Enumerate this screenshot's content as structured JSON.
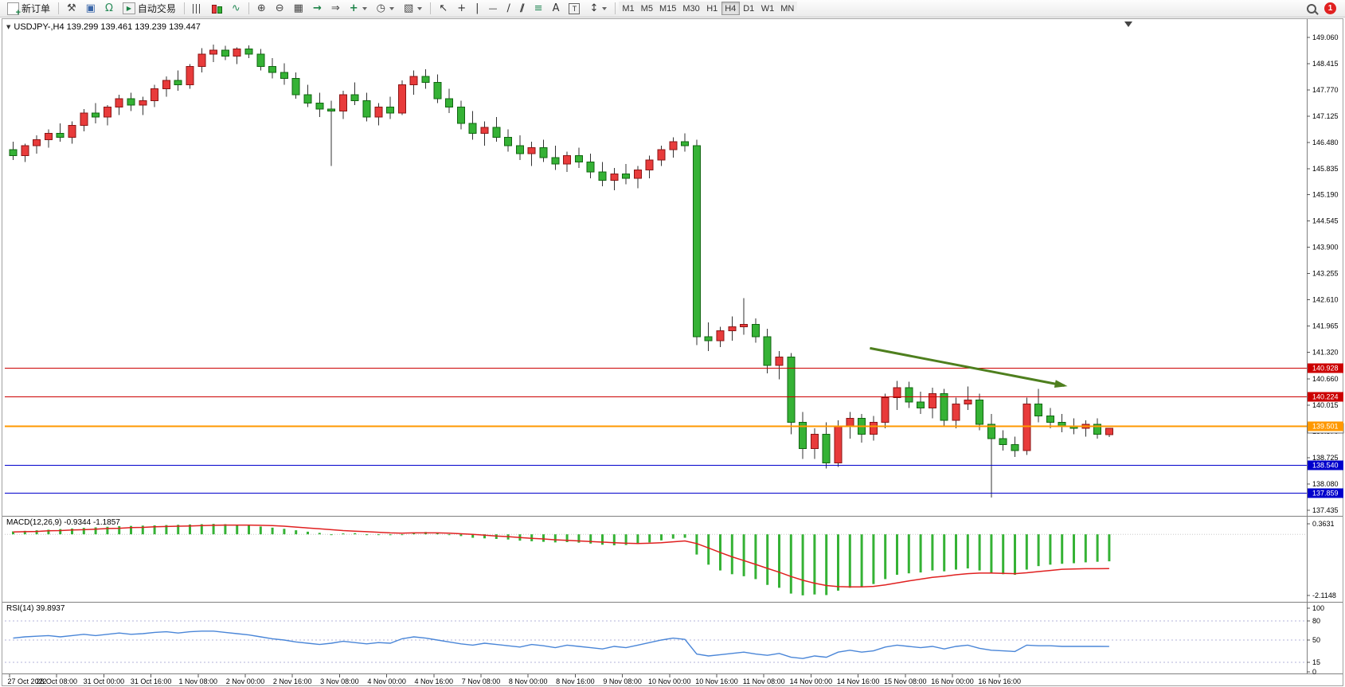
{
  "toolbar": {
    "new_order": "新订单",
    "autotrading": "自动交易",
    "timeframes": [
      "M1",
      "M5",
      "M15",
      "M30",
      "H1",
      "H4",
      "D1",
      "W1",
      "MN"
    ],
    "active_timeframe": "H4",
    "notification_count": "1",
    "icons": {
      "hammer": "⚒",
      "monitor": "▣",
      "headset": "Ω",
      "line_chart": "∿",
      "zoom_in": "⊕",
      "zoom_out": "⊖",
      "tile_windows": "▦",
      "auto_scroll": "→",
      "chart_shift": "⇒",
      "indicators": "+",
      "periods": "◷",
      "templates": "▧",
      "cursor": "↖",
      "crosshair": "+",
      "vertical_line": "|",
      "horizontal_line": "—",
      "trendline": "∕",
      "channel": "∕∕",
      "fibonacci": "≡",
      "text": "A",
      "text_label": "T",
      "arrows": "↕",
      "autotrading_play": "▶",
      "one_click_toggle": "▼"
    }
  },
  "chart": {
    "title": "USDJPY-,H4  139.299 139.461 139.239 139.447"
  },
  "indicators": {
    "macd_label": "MACD(12,26,9) -0.9344 -1.1857",
    "rsi_label": "RSI(14) 39.8937"
  },
  "chart_data": {
    "type": "candlestick",
    "symbol": "USDJPY-",
    "period": "H4",
    "ohlc_current": {
      "open": 139.299,
      "high": 139.461,
      "low": 139.239,
      "close": 139.447
    },
    "y_ticks": [
      "149.060",
      "148.415",
      "147.770",
      "147.125",
      "146.480",
      "145.835",
      "145.190",
      "144.545",
      "143.900",
      "143.255",
      "142.610",
      "141.965",
      "141.320",
      "140.660",
      "140.015",
      "139.370",
      "138.725",
      "138.080",
      "137.435"
    ],
    "x_labels": [
      "27 Oct 2022",
      "28 Oct 08:00",
      "31 Oct 00:00",
      "31 Oct 16:00",
      "1 Nov 08:00",
      "2 Nov 00:00",
      "2 Nov 16:00",
      "3 Nov 08:00",
      "4 Nov 00:00",
      "4 Nov 16:00",
      "7 Nov 08:00",
      "8 Nov 00:00",
      "8 Nov 16:00",
      "9 Nov 08:00",
      "10 Nov 00:00",
      "10 Nov 16:00",
      "11 Nov 08:00",
      "14 Nov 00:00",
      "14 Nov 16:00",
      "15 Nov 08:00",
      "16 Nov 00:00",
      "16 Nov 16:00"
    ],
    "candles": [
      [
        146.3,
        146.5,
        146.05,
        146.15
      ],
      [
        146.15,
        146.45,
        146.0,
        146.4
      ],
      [
        146.4,
        146.65,
        146.2,
        146.55
      ],
      [
        146.55,
        146.8,
        146.35,
        146.7
      ],
      [
        146.7,
        146.95,
        146.5,
        146.6
      ],
      [
        146.6,
        147.0,
        146.45,
        146.9
      ],
      [
        146.9,
        147.3,
        146.75,
        147.2
      ],
      [
        147.2,
        147.45,
        146.95,
        147.1
      ],
      [
        147.1,
        147.4,
        146.9,
        147.35
      ],
      [
        147.35,
        147.65,
        147.15,
        147.55
      ],
      [
        147.55,
        147.7,
        147.25,
        147.4
      ],
      [
        147.4,
        147.6,
        147.15,
        147.5
      ],
      [
        147.5,
        147.9,
        147.35,
        147.8
      ],
      [
        147.8,
        148.1,
        147.6,
        148.0
      ],
      [
        148.0,
        148.25,
        147.75,
        147.9
      ],
      [
        147.9,
        148.4,
        147.8,
        148.35
      ],
      [
        148.35,
        148.8,
        148.2,
        148.65
      ],
      [
        148.65,
        148.88,
        148.45,
        148.75
      ],
      [
        148.75,
        148.85,
        148.5,
        148.6
      ],
      [
        148.6,
        148.82,
        148.4,
        148.78
      ],
      [
        148.78,
        148.86,
        148.55,
        148.65
      ],
      [
        148.65,
        148.78,
        148.25,
        148.35
      ],
      [
        148.35,
        148.55,
        148.05,
        148.2
      ],
      [
        148.2,
        148.42,
        147.9,
        148.05
      ],
      [
        148.05,
        148.2,
        147.55,
        147.65
      ],
      [
        147.65,
        147.9,
        147.35,
        147.45
      ],
      [
        147.45,
        147.7,
        147.1,
        147.3
      ],
      [
        147.3,
        147.5,
        145.9,
        147.25
      ],
      [
        147.25,
        147.75,
        147.05,
        147.65
      ],
      [
        147.65,
        147.95,
        147.4,
        147.5
      ],
      [
        147.5,
        147.7,
        147.0,
        147.1
      ],
      [
        147.1,
        147.45,
        146.9,
        147.35
      ],
      [
        147.35,
        147.6,
        147.05,
        147.2
      ],
      [
        147.2,
        148.0,
        147.15,
        147.9
      ],
      [
        147.9,
        148.25,
        147.65,
        148.1
      ],
      [
        148.1,
        148.28,
        147.8,
        147.95
      ],
      [
        147.95,
        148.15,
        147.45,
        147.55
      ],
      [
        147.55,
        147.8,
        147.2,
        147.35
      ],
      [
        147.35,
        147.5,
        146.8,
        146.95
      ],
      [
        146.95,
        147.25,
        146.55,
        146.7
      ],
      [
        146.7,
        147.0,
        146.4,
        146.85
      ],
      [
        146.85,
        147.1,
        146.5,
        146.6
      ],
      [
        146.6,
        146.8,
        146.25,
        146.4
      ],
      [
        146.4,
        146.65,
        146.05,
        146.2
      ],
      [
        146.2,
        146.5,
        145.9,
        146.35
      ],
      [
        146.35,
        146.55,
        146.0,
        146.1
      ],
      [
        146.1,
        146.4,
        145.8,
        145.95
      ],
      [
        145.95,
        146.25,
        145.75,
        146.15
      ],
      [
        146.15,
        146.35,
        145.85,
        146.0
      ],
      [
        146.0,
        146.2,
        145.6,
        145.75
      ],
      [
        145.75,
        146.0,
        145.4,
        145.55
      ],
      [
        145.55,
        145.85,
        145.3,
        145.7
      ],
      [
        145.7,
        145.95,
        145.45,
        145.6
      ],
      [
        145.6,
        145.9,
        145.35,
        145.8
      ],
      [
        145.8,
        146.15,
        145.6,
        146.05
      ],
      [
        146.05,
        146.4,
        145.9,
        146.3
      ],
      [
        146.3,
        146.6,
        146.1,
        146.5
      ],
      [
        146.5,
        146.7,
        146.25,
        146.4
      ],
      [
        146.4,
        146.55,
        141.5,
        141.7
      ],
      [
        141.7,
        142.05,
        141.35,
        141.6
      ],
      [
        141.6,
        141.95,
        141.45,
        141.85
      ],
      [
        141.85,
        142.2,
        141.6,
        141.95
      ],
      [
        141.95,
        142.65,
        141.75,
        142.0
      ],
      [
        142.0,
        142.15,
        141.55,
        141.7
      ],
      [
        141.7,
        141.9,
        140.8,
        141.0
      ],
      [
        141.0,
        141.35,
        140.65,
        141.2
      ],
      [
        141.2,
        141.3,
        139.3,
        139.6
      ],
      [
        139.6,
        139.85,
        138.7,
        138.95
      ],
      [
        138.95,
        139.45,
        138.7,
        139.3
      ],
      [
        139.3,
        139.6,
        138.46,
        138.6
      ],
      [
        138.6,
        139.65,
        138.5,
        139.5
      ],
      [
        139.5,
        139.85,
        139.2,
        139.7
      ],
      [
        139.7,
        139.8,
        139.1,
        139.3
      ],
      [
        139.3,
        139.75,
        139.15,
        139.6
      ],
      [
        139.6,
        140.3,
        139.45,
        140.2
      ],
      [
        140.2,
        140.62,
        139.9,
        140.45
      ],
      [
        140.45,
        140.6,
        139.95,
        140.1
      ],
      [
        140.1,
        140.35,
        139.8,
        139.95
      ],
      [
        139.95,
        140.45,
        139.7,
        140.3
      ],
      [
        140.3,
        140.42,
        139.5,
        139.65
      ],
      [
        139.65,
        140.2,
        139.45,
        140.05
      ],
      [
        140.05,
        140.48,
        139.9,
        140.15
      ],
      [
        140.15,
        140.3,
        139.4,
        139.55
      ],
      [
        139.55,
        139.8,
        137.75,
        139.2
      ],
      [
        139.2,
        139.4,
        138.9,
        139.05
      ],
      [
        139.05,
        139.25,
        138.75,
        138.9
      ],
      [
        138.9,
        140.2,
        138.8,
        140.05
      ],
      [
        140.05,
        140.42,
        139.6,
        139.75
      ],
      [
        139.75,
        139.95,
        139.45,
        139.6
      ],
      [
        139.6,
        139.8,
        139.35,
        139.5
      ],
      [
        139.5,
        139.7,
        139.3,
        139.45
      ],
      [
        139.45,
        139.65,
        139.25,
        139.55
      ],
      [
        139.55,
        139.7,
        139.2,
        139.3
      ],
      [
        139.299,
        139.461,
        139.239,
        139.447
      ]
    ],
    "hlines": [
      {
        "price": 140.928,
        "color": "#cc0000",
        "label": "140.928",
        "width": 1
      },
      {
        "price": 140.224,
        "color": "#cc0000",
        "label": "140.224",
        "width": 1
      },
      {
        "price": 139.501,
        "color": "#ff9800",
        "label": "139.501",
        "width": 2
      },
      {
        "price": 138.54,
        "color": "#0000cc",
        "label": "138.540",
        "width": 1
      },
      {
        "price": 137.859,
        "color": "#0000cc",
        "label": "137.859",
        "width": 1
      }
    ],
    "bid": {
      "price": 139.447,
      "label": "139.447"
    },
    "arrow": {
      "from_bar": 73,
      "from_price": 141.42,
      "to_bar": 89.5,
      "to_price": 140.5,
      "color": "#4e7f1e"
    },
    "macd": {
      "label": "MACD(12,26,9)",
      "value_main": -0.9344,
      "value_signal": -1.1857,
      "scale_max": 0.3631,
      "scale_min": -2.1148,
      "scale_labels": [
        "0.3631",
        "-2.1148"
      ],
      "histogram": [
        0.1,
        0.12,
        0.14,
        0.16,
        0.18,
        0.2,
        0.22,
        0.24,
        0.26,
        0.28,
        0.29,
        0.3,
        0.31,
        0.32,
        0.33,
        0.34,
        0.35,
        0.36,
        0.35,
        0.33,
        0.31,
        0.27,
        0.23,
        0.19,
        0.14,
        0.09,
        0.05,
        0.02,
        0.03,
        0.04,
        0.01,
        -0.02,
        -0.03,
        0.02,
        0.06,
        0.08,
        0.05,
        0.0,
        -0.06,
        -0.12,
        -0.14,
        -0.16,
        -0.18,
        -0.22,
        -0.24,
        -0.26,
        -0.28,
        -0.27,
        -0.29,
        -0.32,
        -0.36,
        -0.38,
        -0.37,
        -0.34,
        -0.28,
        -0.21,
        -0.15,
        -0.12,
        -0.7,
        -1.05,
        -1.25,
        -1.38,
        -1.45,
        -1.55,
        -1.75,
        -1.85,
        -2.05,
        -2.11,
        -2.08,
        -2.1,
        -1.95,
        -1.85,
        -1.8,
        -1.72,
        -1.55,
        -1.4,
        -1.35,
        -1.32,
        -1.25,
        -1.28,
        -1.22,
        -1.18,
        -1.25,
        -1.35,
        -1.38,
        -1.4,
        -1.22,
        -1.1,
        -1.05,
        -1.02,
        -1.0,
        -0.97,
        -0.95,
        -0.9344
      ],
      "signal": [
        0.08,
        0.09,
        0.1,
        0.12,
        0.13,
        0.15,
        0.16,
        0.18,
        0.2,
        0.21,
        0.23,
        0.24,
        0.26,
        0.27,
        0.28,
        0.29,
        0.3,
        0.31,
        0.32,
        0.32,
        0.32,
        0.31,
        0.3,
        0.28,
        0.25,
        0.22,
        0.19,
        0.16,
        0.13,
        0.11,
        0.09,
        0.07,
        0.05,
        0.04,
        0.05,
        0.05,
        0.05,
        0.04,
        0.02,
        0.0,
        -0.03,
        -0.06,
        -0.08,
        -0.11,
        -0.14,
        -0.16,
        -0.19,
        -0.21,
        -0.23,
        -0.25,
        -0.27,
        -0.29,
        -0.31,
        -0.32,
        -0.31,
        -0.29,
        -0.26,
        -0.23,
        -0.32,
        -0.47,
        -0.63,
        -0.78,
        -0.91,
        -1.04,
        -1.18,
        -1.31,
        -1.46,
        -1.59,
        -1.69,
        -1.77,
        -1.81,
        -1.82,
        -1.82,
        -1.8,
        -1.75,
        -1.68,
        -1.61,
        -1.55,
        -1.49,
        -1.45,
        -1.4,
        -1.36,
        -1.34,
        -1.34,
        -1.35,
        -1.36,
        -1.33,
        -1.29,
        -1.25,
        -1.21,
        -1.2,
        -1.19,
        -1.19,
        -1.1857
      ]
    },
    "rsi": {
      "label": "RSI(14)",
      "value": 39.8937,
      "levels": [
        100,
        80,
        50,
        15,
        0
      ],
      "level_lines": [
        80,
        50,
        15
      ],
      "values": [
        53,
        55,
        56,
        57,
        55,
        57,
        59,
        57,
        59,
        61,
        59,
        60,
        62,
        63,
        61,
        63,
        64,
        64,
        62,
        60,
        58,
        55,
        52,
        50,
        47,
        45,
        43,
        45,
        48,
        46,
        44,
        46,
        45,
        52,
        55,
        53,
        50,
        47,
        44,
        42,
        45,
        43,
        41,
        39,
        43,
        41,
        38,
        42,
        40,
        38,
        36,
        40,
        38,
        42,
        46,
        50,
        53,
        51,
        28,
        25,
        27,
        29,
        31,
        28,
        26,
        29,
        23,
        21,
        25,
        23,
        31,
        34,
        31,
        33,
        39,
        42,
        40,
        38,
        40,
        36,
        40,
        42,
        37,
        34,
        33,
        32,
        42,
        41,
        41,
        40,
        40,
        40,
        40,
        39.89
      ]
    },
    "colors": {
      "up": "#e83b3b",
      "down": "#35b235",
      "up_border": "#8a1515",
      "down_border": "#116611",
      "wick": "#333333",
      "macd_hist": "#35b235",
      "macd_signal": "#e02020",
      "rsi": "#4a86d8"
    }
  }
}
